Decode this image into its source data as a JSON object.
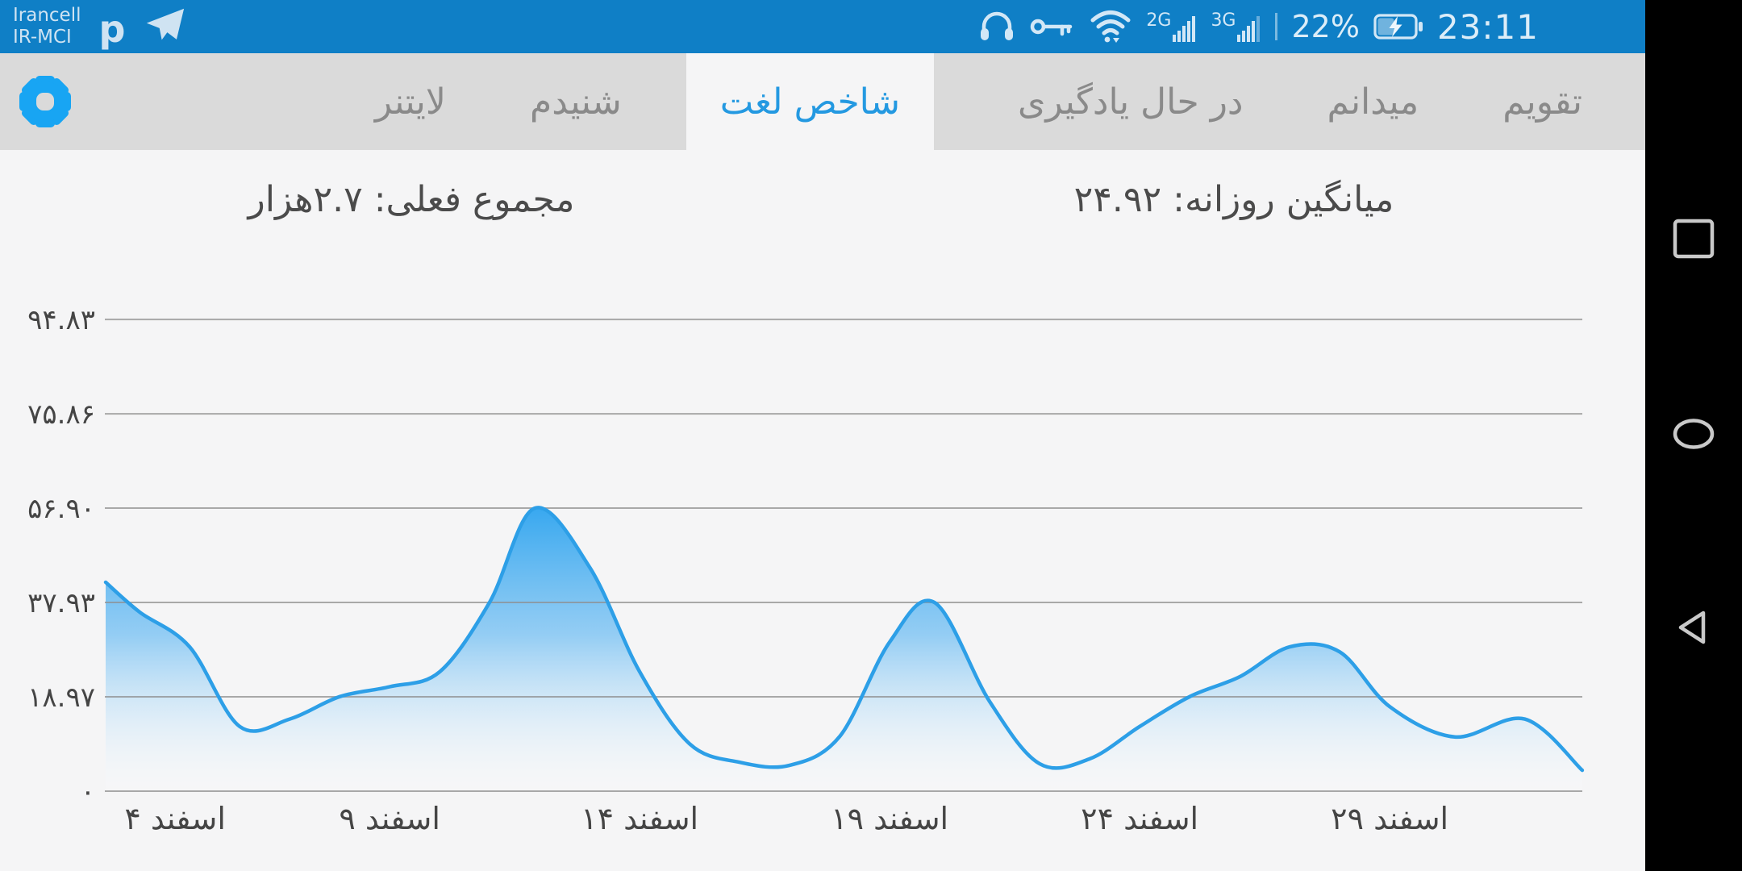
{
  "status_bar": {
    "carrier_line1": "Irancell",
    "carrier_line2": "IR-MCI",
    "notification_letter": "p",
    "network_2g": "2G",
    "network_3g": "3G",
    "battery_percent": "22%",
    "time": "23:11"
  },
  "icons": {
    "settings": "gear",
    "messenger": "telegram-paper-plane",
    "audio": "headphones",
    "vpn": "key",
    "wifi": "wifi",
    "battery": "battery-charging",
    "nav_recent": "square",
    "nav_home": "circle",
    "nav_back": "triangle-left"
  },
  "tab_bar": {
    "tabs": [
      {
        "id": "calendar",
        "label": "تقویم",
        "active": false
      },
      {
        "id": "known",
        "label": "میدانم",
        "active": false
      },
      {
        "id": "learning",
        "label": "در حال یادگیری",
        "active": false
      },
      {
        "id": "word-index",
        "label": "شاخص لغت",
        "active": true
      },
      {
        "id": "heard",
        "label": "شنیدم",
        "active": false
      },
      {
        "id": "leitner",
        "label": "لایتنر",
        "active": false
      }
    ]
  },
  "stats": {
    "daily_average": "میانگین روزانه: ۲۴.۹۲",
    "current_total": "مجموع فعلی: ۲.۷هزار"
  },
  "colors": {
    "status_bar": "#0f7fc6",
    "accent_blue": "#18a5f3",
    "active_tab_text": "#2499e1",
    "tab_bar_bg": "#dadada",
    "tab_inactive_text": "#8a8a8a",
    "content_bg": "#f5f5f6",
    "grid_line": "#8f8f8f",
    "axis_text": "#454545",
    "nav_bar_bg": "#000000",
    "nav_icon": "#c9c9c9",
    "status_content": "#d2e7f6"
  },
  "chart_data": {
    "type": "area",
    "title": "",
    "xlabel": "",
    "ylabel": "",
    "x_unit": "day of Esfand (Persian calendar month)",
    "grid": true,
    "legend": false,
    "ylim": [
      0,
      94.83
    ],
    "xlim": [
      3.32,
      32.85
    ],
    "line_color": "#2d9fe7",
    "fill_gradient": [
      "#2ea4ef",
      "#ffffff"
    ],
    "y_ticks": [
      {
        "value": 94.83,
        "label": "۹۴.۸۳"
      },
      {
        "value": 75.86,
        "label": "۷۵.۸۶"
      },
      {
        "value": 56.9,
        "label": "۵۶.۹۰"
      },
      {
        "value": 37.93,
        "label": "۳۷.۹۳"
      },
      {
        "value": 18.97,
        "label": "۱۸.۹۷"
      },
      {
        "value": 0,
        "label": "۰"
      }
    ],
    "x_ticks": [
      {
        "day": 4,
        "label": "۴ اسفند"
      },
      {
        "day": 9,
        "label": "۹ اسفند"
      },
      {
        "day": 14,
        "label": "۱۴ اسفند"
      },
      {
        "day": 19,
        "label": "۱۹ اسفند"
      },
      {
        "day": 24,
        "label": "۲۴ اسفند"
      },
      {
        "day": 29,
        "label": "۲۹ اسفند"
      }
    ],
    "points": [
      [
        3.32,
        42
      ],
      [
        4,
        36
      ],
      [
        5,
        29
      ],
      [
        6,
        13
      ],
      [
        7,
        14.5
      ],
      [
        8,
        19
      ],
      [
        9,
        21
      ],
      [
        10,
        24
      ],
      [
        11,
        38
      ],
      [
        11.9,
        56.9
      ],
      [
        13,
        45
      ],
      [
        14,
        24
      ],
      [
        15,
        9.5
      ],
      [
        16,
        5.8
      ],
      [
        17,
        5.2
      ],
      [
        18,
        11
      ],
      [
        19,
        30
      ],
      [
        19.9,
        37.9
      ],
      [
        21,
        18
      ],
      [
        22,
        5.5
      ],
      [
        23,
        6.5
      ],
      [
        24,
        13
      ],
      [
        25,
        19
      ],
      [
        26,
        23
      ],
      [
        27,
        29
      ],
      [
        28,
        28
      ],
      [
        29,
        17
      ],
      [
        30.3,
        10.9
      ],
      [
        31.7,
        14.5
      ],
      [
        32.85,
        4.2
      ]
    ]
  }
}
